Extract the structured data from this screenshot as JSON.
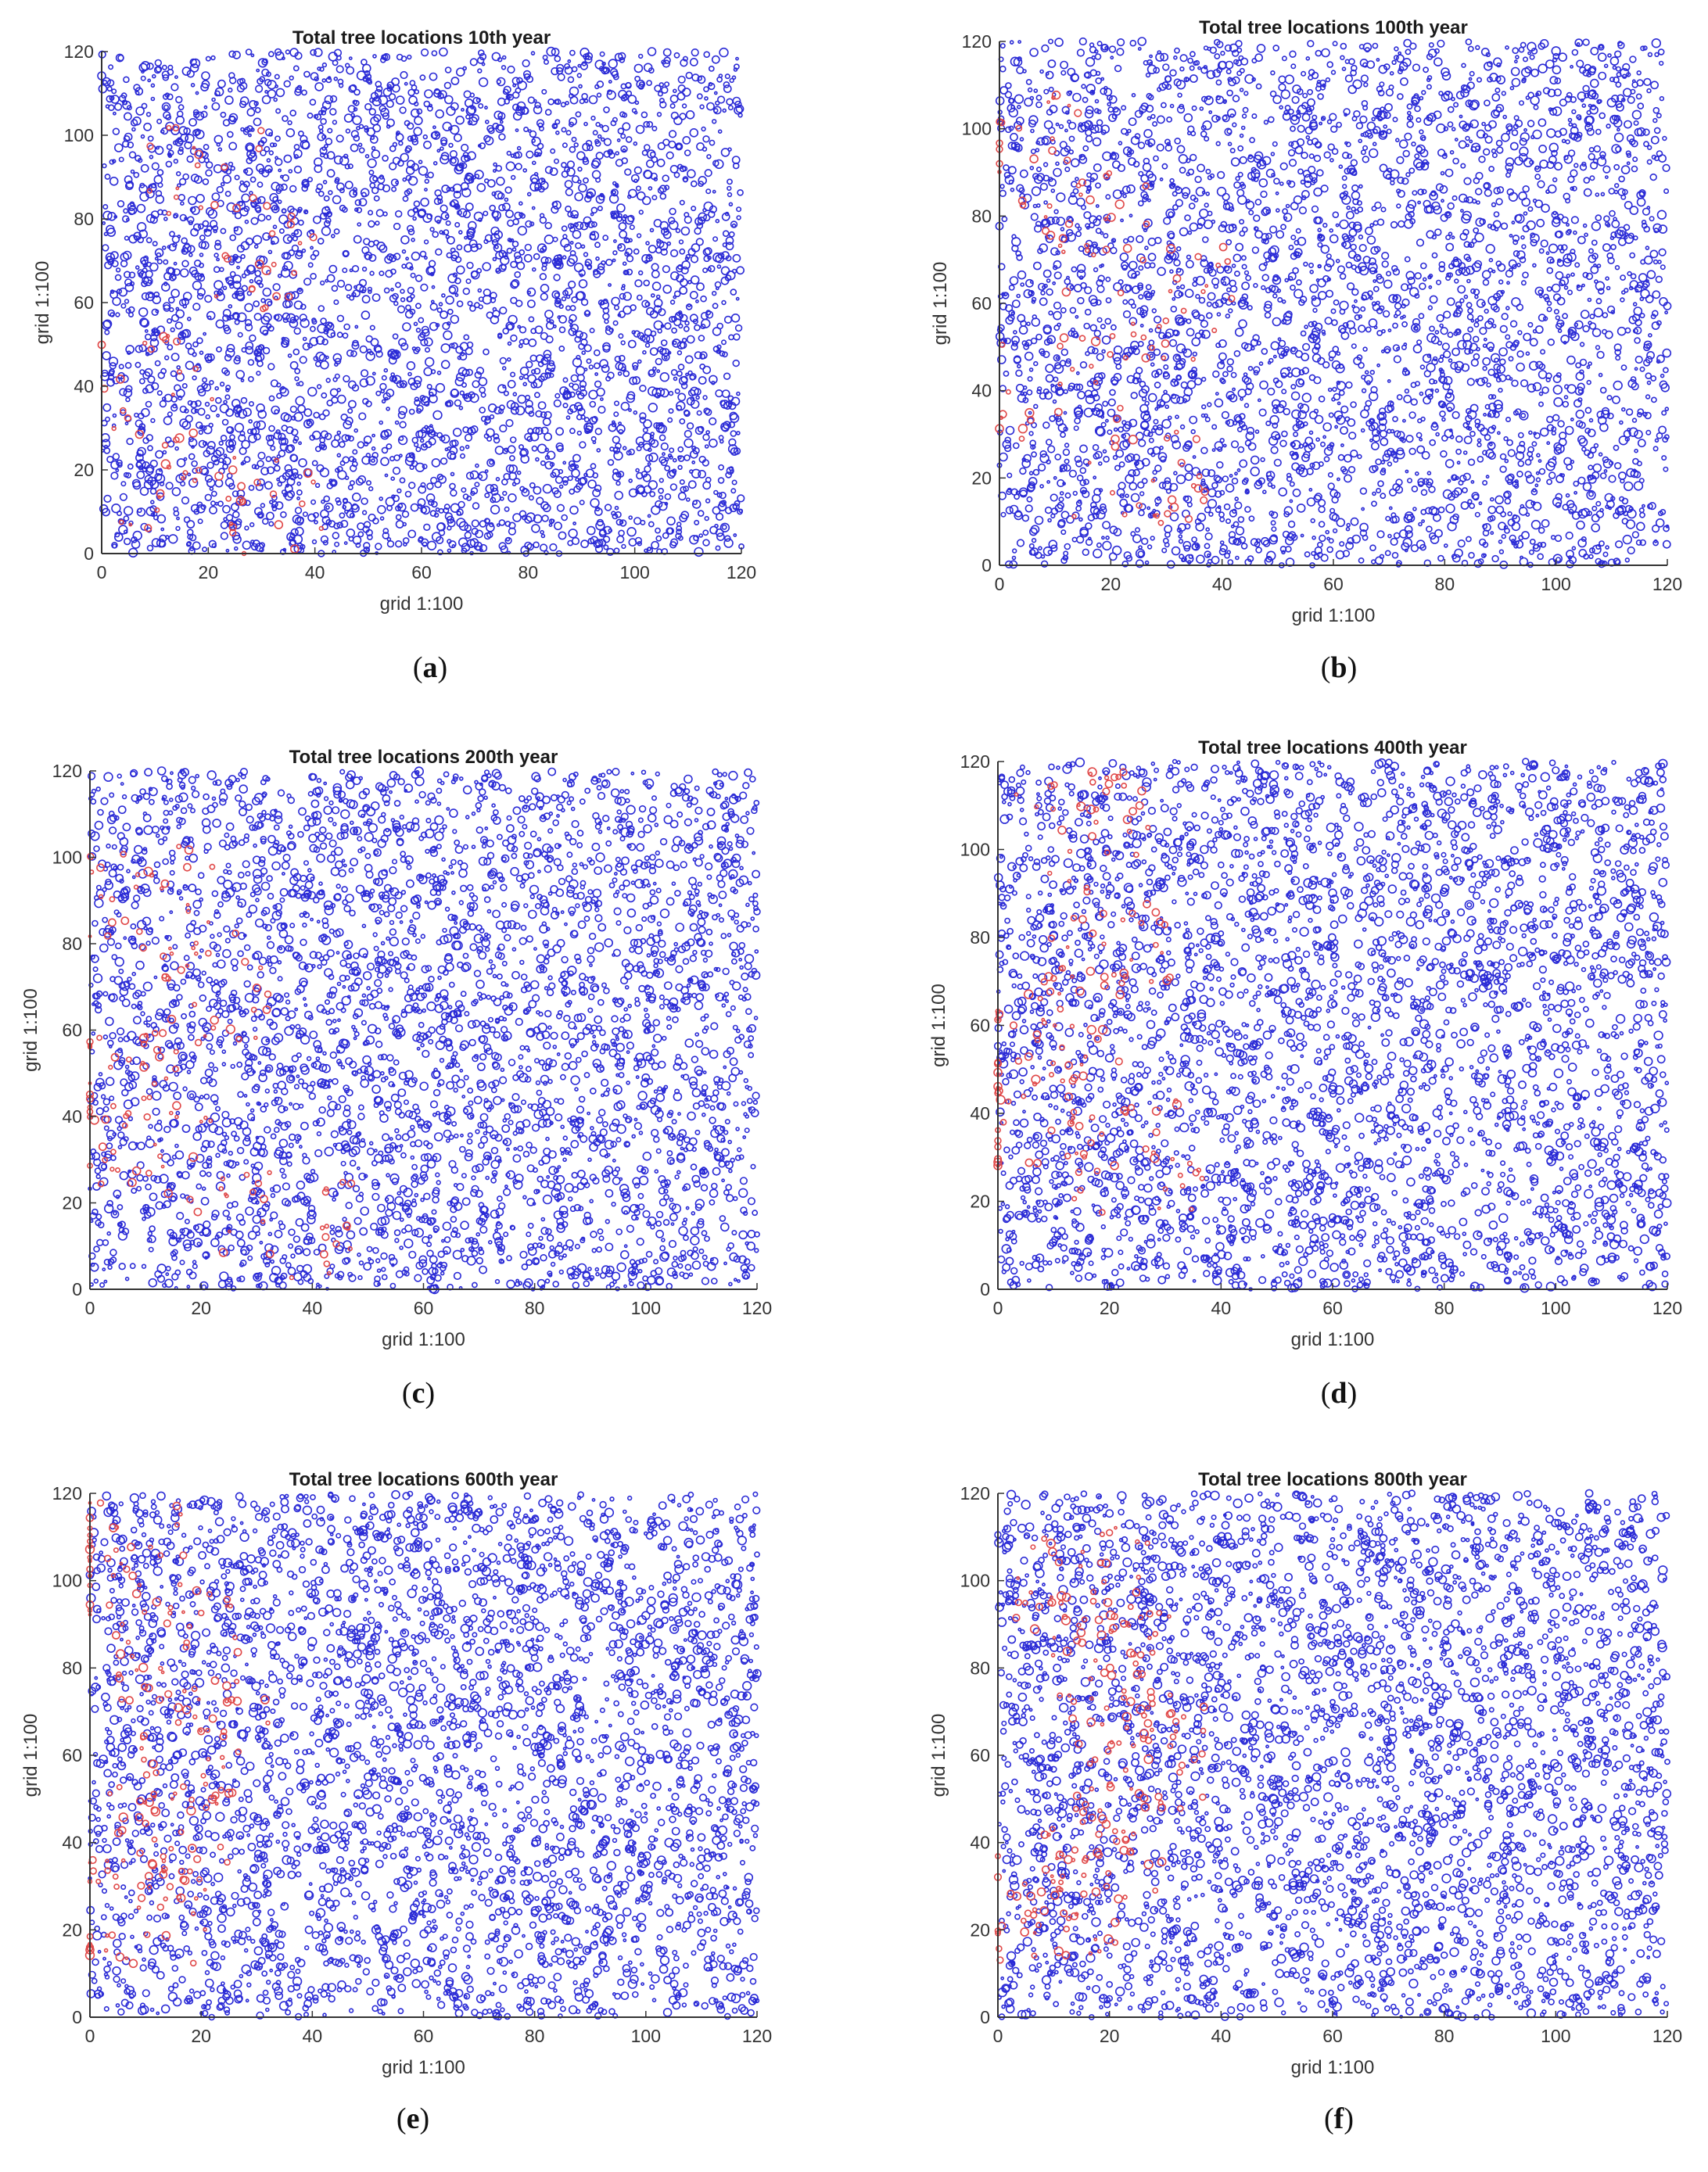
{
  "colors": {
    "blue": "#2b2bd6",
    "red": "#e04848",
    "axis": "#333333"
  },
  "chart_data": [
    {
      "type": "scatter",
      "id": "a",
      "caption": "a",
      "title": "Total tree locations 10th year",
      "xlabel": "grid 1:100",
      "ylabel": "grid 1:100",
      "xlim": [
        0,
        120
      ],
      "ylim": [
        0,
        120
      ],
      "xticks": [
        0,
        20,
        40,
        60,
        80,
        100,
        120
      ],
      "yticks": [
        0,
        20,
        40,
        60,
        80,
        100,
        120
      ],
      "grid": false,
      "legend": "none",
      "series": [
        {
          "color": "#2b2bd6",
          "points": []
        },
        {
          "color": "#e04848",
          "points": []
        }
      ]
    },
    {
      "type": "scatter",
      "id": "b",
      "caption": "b",
      "title": "Total tree locations 100th year",
      "xlabel": "grid 1:100",
      "ylabel": "grid 1:100",
      "xlim": [
        0,
        120
      ],
      "ylim": [
        0,
        120
      ],
      "xticks": [
        0,
        20,
        40,
        60,
        80,
        100,
        120
      ],
      "yticks": [
        0,
        20,
        40,
        60,
        80,
        100,
        120
      ],
      "grid": false,
      "legend": "none",
      "series": [
        {
          "color": "#2b2bd6",
          "points": []
        },
        {
          "color": "#e04848",
          "points": []
        }
      ]
    },
    {
      "type": "scatter",
      "id": "c",
      "caption": "c",
      "title": "Total tree locations 200th year",
      "xlabel": "grid 1:100",
      "ylabel": "grid 1:100",
      "xlim": [
        0,
        120
      ],
      "ylim": [
        0,
        120
      ],
      "xticks": [
        0,
        20,
        40,
        60,
        80,
        100,
        120
      ],
      "yticks": [
        0,
        20,
        40,
        60,
        80,
        100,
        120
      ],
      "grid": false,
      "legend": "none",
      "series": [
        {
          "color": "#2b2bd6",
          "points": []
        },
        {
          "color": "#e04848",
          "points": []
        }
      ]
    },
    {
      "type": "scatter",
      "id": "d",
      "caption": "d",
      "title": "Total tree locations 400th year",
      "xlabel": "grid 1:100",
      "ylabel": "grid 1:100",
      "xlim": [
        0,
        120
      ],
      "ylim": [
        0,
        120
      ],
      "xticks": [
        0,
        20,
        40,
        60,
        80,
        100,
        120
      ],
      "yticks": [
        0,
        20,
        40,
        60,
        80,
        100,
        120
      ],
      "grid": false,
      "legend": "none",
      "series": [
        {
          "color": "#2b2bd6",
          "points": []
        },
        {
          "color": "#e04848",
          "points": []
        }
      ]
    },
    {
      "type": "scatter",
      "id": "e",
      "caption": "e",
      "title": "Total tree locations 600th year",
      "xlabel": "grid 1:100",
      "ylabel": "grid 1:100",
      "xlim": [
        0,
        120
      ],
      "ylim": [
        0,
        120
      ],
      "xticks": [
        0,
        20,
        40,
        60,
        80,
        100,
        120
      ],
      "yticks": [
        0,
        20,
        40,
        60,
        80,
        100,
        120
      ],
      "grid": false,
      "legend": "none",
      "series": [
        {
          "color": "#2b2bd6",
          "points": []
        },
        {
          "color": "#e04848",
          "points": []
        }
      ]
    },
    {
      "type": "scatter",
      "id": "f",
      "caption": "f",
      "title": "Total tree locations 800th year",
      "xlabel": "grid 1:100",
      "ylabel": "grid 1:100",
      "xlim": [
        0,
        120
      ],
      "ylim": [
        0,
        120
      ],
      "xticks": [
        0,
        20,
        40,
        60,
        80,
        100,
        120
      ],
      "yticks": [
        0,
        20,
        40,
        60,
        80,
        100,
        120
      ],
      "grid": false,
      "legend": "none",
      "series": [
        {
          "color": "#2b2bd6",
          "points": []
        },
        {
          "color": "#e04848",
          "points": []
        }
      ]
    }
  ]
}
